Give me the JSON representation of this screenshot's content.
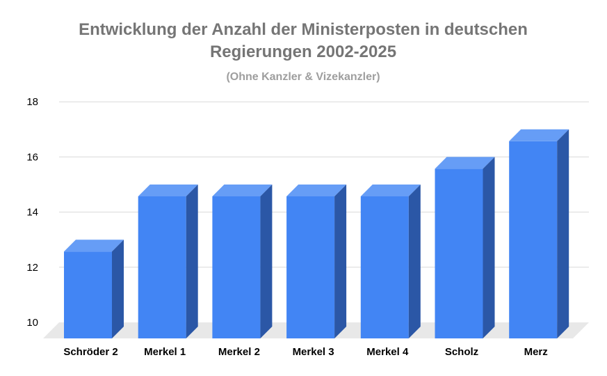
{
  "chart_data": {
    "type": "bar",
    "title_lines": [
      "Entwicklung der Anzahl der Ministerposten in deutschen",
      "Regierungen 2002-2025"
    ],
    "subtitle": "(Ohne Kanzler & Vizekanzler)",
    "categories": [
      "Schröder 2",
      "Merkel 1",
      "Merkel 2",
      "Merkel 3",
      "Merkel 4",
      "Scholz",
      "Merz"
    ],
    "values": [
      13,
      15,
      15,
      15,
      15,
      16,
      17
    ],
    "ylim": [
      10,
      18
    ],
    "yticks": [
      "10",
      "12",
      "14",
      "16",
      "18"
    ],
    "xlabel": "",
    "ylabel": "",
    "grid": true,
    "colors": {
      "front": "#4285f4",
      "top": "#669df6",
      "side": "#2b57a6",
      "floor": "#e8e8e8",
      "grid": "#d9d9d9"
    }
  }
}
